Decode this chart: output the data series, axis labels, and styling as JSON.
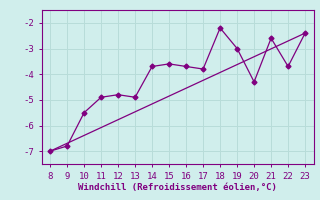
{
  "title": "",
  "xlabel": "Windchill (Refroidissement éolien,°C)",
  "x_data": [
    8,
    9,
    10,
    11,
    12,
    13,
    14,
    15,
    16,
    17,
    18,
    19,
    20,
    21,
    22,
    23
  ],
  "y_data": [
    -7.0,
    -6.8,
    -5.5,
    -4.9,
    -4.8,
    -4.9,
    -3.7,
    -3.6,
    -3.7,
    -3.8,
    -2.2,
    -3.0,
    -4.3,
    -2.6,
    -3.7,
    -2.4
  ],
  "trend_x": [
    8,
    23
  ],
  "trend_y": [
    -7.0,
    -2.4
  ],
  "line_color": "#800080",
  "bg_color": "#d0eeec",
  "grid_color": "#b8dcd9",
  "axis_color": "#800080",
  "xlim": [
    7.5,
    23.5
  ],
  "ylim": [
    -7.5,
    -1.5
  ],
  "yticks": [
    -7,
    -6,
    -5,
    -4,
    -3,
    -2
  ],
  "xticks": [
    8,
    9,
    10,
    11,
    12,
    13,
    14,
    15,
    16,
    17,
    18,
    19,
    20,
    21,
    22,
    23
  ],
  "marker": "D",
  "markersize": 2.5,
  "linewidth": 0.9,
  "tick_fontsize": 6.5,
  "xlabel_fontsize": 6.5
}
